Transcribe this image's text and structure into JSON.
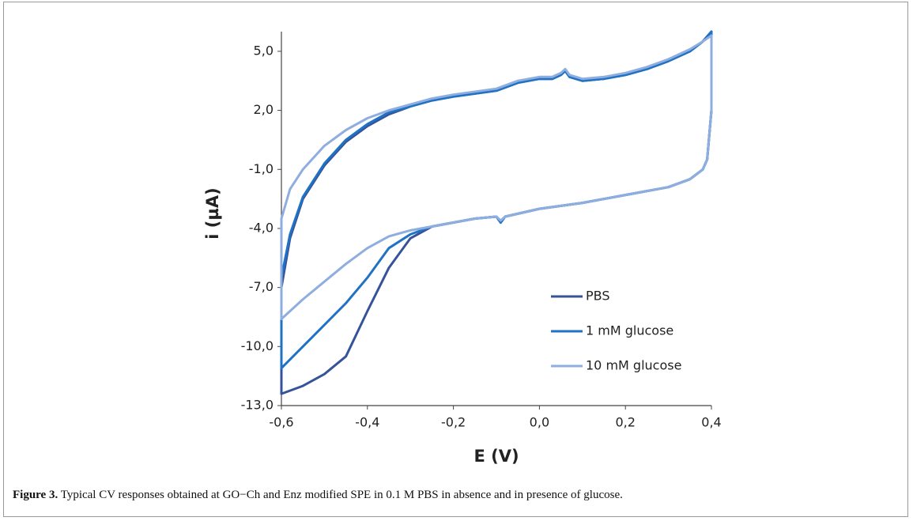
{
  "chart_data": {
    "type": "line",
    "xlabel": "E (V)",
    "ylabel": "i (µA)",
    "x": [
      -0.6,
      -0.58,
      -0.55,
      -0.5,
      -0.45,
      -0.4,
      -0.35,
      -0.3,
      -0.25,
      -0.2,
      -0.1,
      -0.05,
      0,
      0.03,
      0.05,
      0.06,
      0.07,
      0.1,
      0.15,
      0.2,
      0.25,
      0.3,
      0.35,
      0.38,
      0.4,
      0.4,
      0.39,
      0.38,
      0.35,
      0.3,
      0.2,
      0.1,
      0,
      -0.08,
      -0.09,
      -0.1,
      -0.15,
      -0.2,
      -0.25,
      -0.3,
      -0.35,
      -0.4,
      -0.45,
      -0.5,
      -0.55,
      -0.6
    ],
    "series": [
      {
        "name": "PBS",
        "color": "#36539a",
        "values": [
          -7,
          -4.5,
          -2.5,
          -0.8,
          0.4,
          1.2,
          1.8,
          2.2,
          2.5,
          2.7,
          3,
          3.4,
          3.6,
          3.6,
          3.8,
          4,
          3.7,
          3.5,
          3.6,
          3.8,
          4.1,
          4.5,
          5,
          5.5,
          6,
          2,
          -0.5,
          -1,
          -1.5,
          -1.9,
          -2.3,
          -2.7,
          -3,
          -3.4,
          -3.7,
          -3.4,
          -3.5,
          -3.7,
          -3.9,
          -4.5,
          -6,
          -8.2,
          -10.5,
          -11.4,
          -12,
          -12.4
        ]
      },
      {
        "name": "1 mM glucose",
        "color": "#1f72c4",
        "values": [
          -6.5,
          -4.3,
          -2.4,
          -0.7,
          0.5,
          1.3,
          1.9,
          2.2,
          2.5,
          2.7,
          3,
          3.4,
          3.6,
          3.6,
          3.8,
          4,
          3.7,
          3.5,
          3.6,
          3.8,
          4.1,
          4.5,
          5,
          5.5,
          6,
          2,
          -0.5,
          -1,
          -1.5,
          -1.9,
          -2.3,
          -2.7,
          -3,
          -3.4,
          -3.7,
          -3.4,
          -3.5,
          -3.7,
          -3.9,
          -4.3,
          -5,
          -6.5,
          -7.8,
          -8.9,
          -10,
          -11.1
        ]
      },
      {
        "name": "10 mM glucose",
        "color": "#8eaee0",
        "values": [
          -3.5,
          -2,
          -1,
          0.2,
          1,
          1.6,
          2,
          2.3,
          2.6,
          2.8,
          3.1,
          3.5,
          3.7,
          3.7,
          3.9,
          4.1,
          3.8,
          3.6,
          3.7,
          3.9,
          4.2,
          4.6,
          5.1,
          5.5,
          5.8,
          2,
          -0.5,
          -1,
          -1.5,
          -1.9,
          -2.3,
          -2.7,
          -3,
          -3.4,
          -3.6,
          -3.4,
          -3.5,
          -3.7,
          -3.9,
          -4.1,
          -4.4,
          -5,
          -5.8,
          -6.7,
          -7.6,
          -8.6
        ]
      }
    ],
    "xlim": [
      -0.6,
      0.4
    ],
    "xticks": [
      {
        "value": -0.6,
        "label": "-0,6"
      },
      {
        "value": -0.4,
        "label": "-0,4"
      },
      {
        "value": -0.2,
        "label": "-0,2"
      },
      {
        "value": 0,
        "label": "0,0"
      },
      {
        "value": 0.2,
        "label": "0,2"
      },
      {
        "value": 0.4,
        "label": "0,4"
      }
    ],
    "ylim": [
      -13,
      6
    ],
    "yticks": [
      {
        "value": -13,
        "label": "-13,0"
      },
      {
        "value": -10,
        "label": "-10,0"
      },
      {
        "value": -7,
        "label": "-7,0"
      },
      {
        "value": -4,
        "label": "-4,0"
      },
      {
        "value": -1,
        "label": "-1,0"
      },
      {
        "value": 2,
        "label": "2,0"
      },
      {
        "value": 5,
        "label": "5,0"
      }
    ],
    "grid": false,
    "legend": "right"
  },
  "caption": {
    "label": "Figure 3.",
    "text": "Typical CV responses obtained at GO−Ch and Enz modified SPE in 0.1 M PBS in absence and in presence of glucose."
  }
}
